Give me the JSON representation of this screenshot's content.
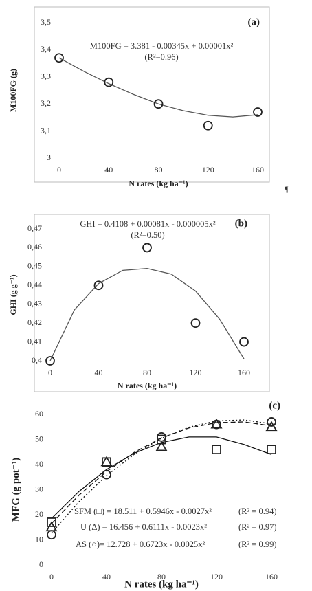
{
  "chart_data": [
    {
      "type": "scatter",
      "title": "(a)",
      "xlabel": "N rates (kg ha⁻¹)",
      "ylabel": "M100FG (g)",
      "xlim": [
        0,
        160
      ],
      "ylim": [
        3,
        3.5
      ],
      "xticks": [
        0,
        40,
        80,
        120,
        160
      ],
      "yticks": [
        3,
        {
          "value": 3.1,
          "label": "3,1"
        },
        {
          "value": 3.2,
          "label": "3,2"
        },
        {
          "value": 3.3,
          "label": "3,3"
        },
        {
          "value": 3.4,
          "label": "3,4"
        },
        {
          "value": 3.5,
          "label": "3,5"
        }
      ],
      "grid": false,
      "x": [
        0,
        40,
        80,
        120,
        160
      ],
      "series": [
        {
          "marker": "circle",
          "color": "#222222",
          "values": [
            3.37,
            3.28,
            3.2,
            3.12,
            3.17
          ]
        }
      ],
      "fits": [
        {
          "dash": "solid",
          "color": "#555555",
          "x": [
            0,
            20,
            40,
            60,
            80,
            100,
            120,
            140,
            160
          ],
          "values": [
            3.37,
            3.32,
            3.275,
            3.235,
            3.2,
            3.175,
            3.158,
            3.152,
            3.16
          ]
        }
      ],
      "annotations": [
        "M100FG = 3.381 - 0.00345x + 0.00001x²",
        "(R²=0.96)"
      ]
    },
    {
      "type": "scatter",
      "title": "(b)",
      "xlabel": "N rates (kg ha⁻¹)",
      "ylabel": "GHI (g g⁻¹)",
      "xlim": [
        0,
        160
      ],
      "ylim": [
        0.4,
        0.47
      ],
      "xticks": [
        0,
        40,
        80,
        120,
        160
      ],
      "yticks": [
        {
          "value": 0.4,
          "label": "0,4"
        },
        {
          "value": 0.41,
          "label": "0,41"
        },
        {
          "value": 0.42,
          "label": "0,42"
        },
        {
          "value": 0.43,
          "label": "0,43"
        },
        {
          "value": 0.44,
          "label": "0,44"
        },
        {
          "value": 0.45,
          "label": "0,45"
        },
        {
          "value": 0.46,
          "label": "0,46"
        },
        {
          "value": 0.47,
          "label": "0,47"
        }
      ],
      "grid": false,
      "x": [
        0,
        40,
        80,
        120,
        160
      ],
      "series": [
        {
          "marker": "circle",
          "color": "#222222",
          "values": [
            0.4,
            0.44,
            0.46,
            0.42,
            0.41
          ]
        }
      ],
      "fits": [
        {
          "dash": "solid",
          "color": "#555555",
          "x": [
            0,
            20,
            40,
            60,
            80,
            100,
            120,
            140,
            160
          ],
          "values": [
            0.4,
            0.427,
            0.441,
            0.448,
            0.449,
            0.446,
            0.437,
            0.422,
            0.401
          ]
        }
      ],
      "annotations": [
        "GHI = 0.4108 + 0.00081x - 0.000005x²",
        "(R²=0.50)"
      ]
    },
    {
      "type": "scatter",
      "title": "(c)",
      "xlabel": "N rates (kg ha⁻¹)",
      "ylabel": "MFG (g pot⁻¹)",
      "xlim": [
        0,
        160
      ],
      "ylim": [
        0,
        60
      ],
      "xticks": [
        0,
        40,
        80,
        120,
        160
      ],
      "yticks": [
        0,
        10,
        20,
        30,
        40,
        50,
        60
      ],
      "grid": false,
      "x": [
        0,
        40,
        80,
        120,
        160
      ],
      "series": [
        {
          "name": "SFM (□) = 18.511 + 0.5946x - 0.0027x²",
          "marker": "square",
          "color": "#222222",
          "values": [
            17,
            41,
            50,
            46,
            46
          ]
        },
        {
          "name": "U (Δ) = 16.456 + 0.6111x - 0.0023x²",
          "marker": "triangle",
          "color": "#222222",
          "values": [
            15,
            41,
            47,
            56,
            55
          ]
        },
        {
          "name": "AS (○)= 12.728 + 0.6723x - 0.0025x²",
          "marker": "circle",
          "color": "#222222",
          "values": [
            12,
            36,
            51,
            56,
            57
          ]
        }
      ],
      "fits": [
        {
          "dash": "solid",
          "color": "#111111",
          "x": [
            0,
            20,
            40,
            60,
            80,
            100,
            120,
            140,
            160
          ],
          "values": [
            18.5,
            29.3,
            38,
            44.5,
            48.8,
            51,
            51,
            48,
            44
          ]
        },
        {
          "dash": "dashed",
          "color": "#111111",
          "x": [
            0,
            20,
            40,
            60,
            80,
            100,
            120,
            140,
            160
          ],
          "values": [
            16.5,
            27.8,
            37.2,
            44.8,
            50.6,
            54.6,
            56.7,
            57,
            55.4
          ]
        },
        {
          "dash": "dotted",
          "color": "#111111",
          "x": [
            0,
            20,
            40,
            60,
            80,
            100,
            120,
            140,
            160
          ],
          "values": [
            12.7,
            25.2,
            35.6,
            44,
            50.5,
            54.9,
            57.4,
            57.8,
            56.2
          ]
        }
      ],
      "annotations": [
        "(R² = 0.94)",
        "(R² = 0.97)",
        "(R² = 0.99)"
      ]
    }
  ],
  "paragraph_mark": "¶"
}
